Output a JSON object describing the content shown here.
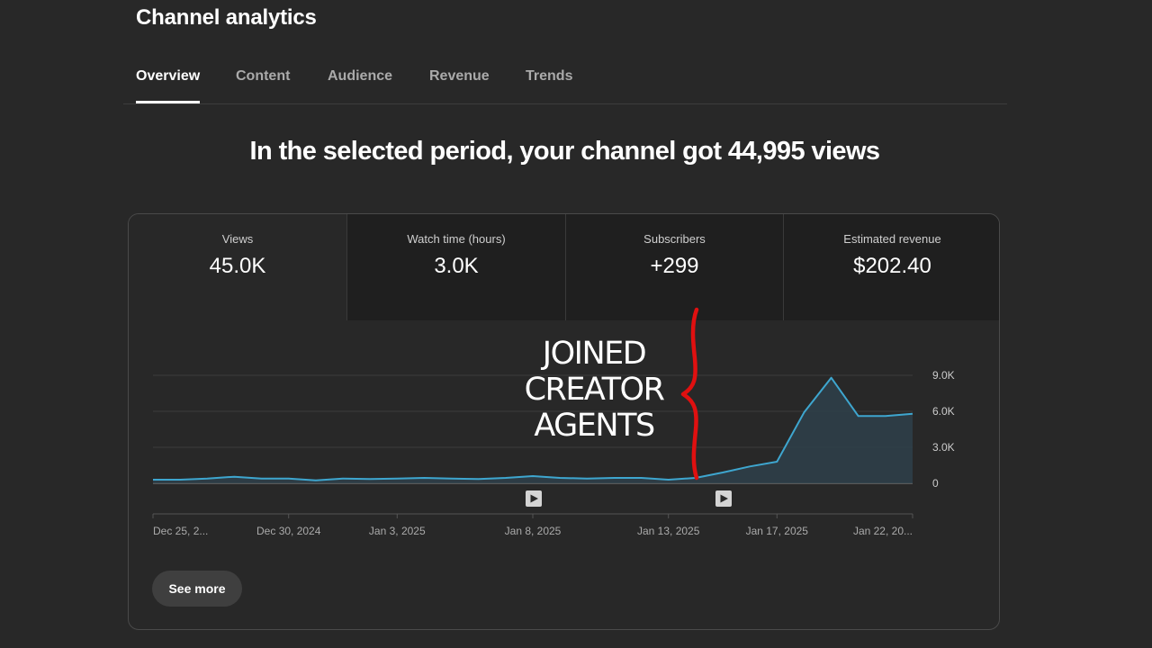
{
  "page": {
    "title": "Channel analytics"
  },
  "tabs": [
    {
      "label": "Overview",
      "active": true
    },
    {
      "label": "Content",
      "active": false
    },
    {
      "label": "Audience",
      "active": false
    },
    {
      "label": "Revenue",
      "active": false
    },
    {
      "label": "Trends",
      "active": false
    }
  ],
  "headline": "In the selected period, your channel got 44,995 views",
  "metrics": [
    {
      "label": "Views",
      "value": "45.0K",
      "selected": true
    },
    {
      "label": "Watch time (hours)",
      "value": "3.0K",
      "selected": false
    },
    {
      "label": "Subscribers",
      "value": "+299",
      "selected": false
    },
    {
      "label": "Estimated revenue",
      "value": "$202.40",
      "selected": false
    }
  ],
  "annotation": {
    "lines": [
      "JOINED",
      "CREATOR",
      "AGENTS"
    ],
    "color": "#e01010"
  },
  "see_more_label": "See more",
  "chart_data": {
    "type": "area",
    "metric": "Views",
    "line_color": "#3ea6cf",
    "fill_color": "#2e3f4a",
    "ylim": [
      0,
      9000
    ],
    "y_ticks": [
      {
        "value": 0,
        "label": "0"
      },
      {
        "value": 3000,
        "label": "3.0K"
      },
      {
        "value": 6000,
        "label": "6.0K"
      },
      {
        "value": 9000,
        "label": "9.0K"
      }
    ],
    "x_ticks": [
      {
        "index": 0,
        "label": "Dec 25, 2..."
      },
      {
        "index": 5,
        "label": "Dec 30, 2024"
      },
      {
        "index": 9,
        "label": "Jan 3, 2025"
      },
      {
        "index": 14,
        "label": "Jan 8, 2025"
      },
      {
        "index": 19,
        "label": "Jan 13, 2025"
      },
      {
        "index": 23,
        "label": "Jan 17, 2025"
      },
      {
        "index": 28,
        "label": "Jan 22, 20..."
      }
    ],
    "dates": [
      "Dec 25",
      "Dec 26",
      "Dec 27",
      "Dec 28",
      "Dec 29",
      "Dec 30",
      "Dec 31",
      "Jan 1",
      "Jan 2",
      "Jan 3",
      "Jan 4",
      "Jan 5",
      "Jan 6",
      "Jan 7",
      "Jan 8",
      "Jan 9",
      "Jan 10",
      "Jan 11",
      "Jan 12",
      "Jan 13",
      "Jan 14",
      "Jan 15",
      "Jan 16",
      "Jan 17",
      "Jan 18",
      "Jan 19",
      "Jan 20",
      "Jan 21",
      "Jan 22"
    ],
    "values": [
      300,
      300,
      400,
      550,
      400,
      400,
      250,
      400,
      350,
      400,
      450,
      400,
      350,
      450,
      600,
      450,
      400,
      450,
      450,
      300,
      450,
      900,
      1400,
      1800,
      5900,
      8800,
      5600,
      5600,
      5800
    ],
    "video_markers": [
      14,
      21
    ]
  }
}
